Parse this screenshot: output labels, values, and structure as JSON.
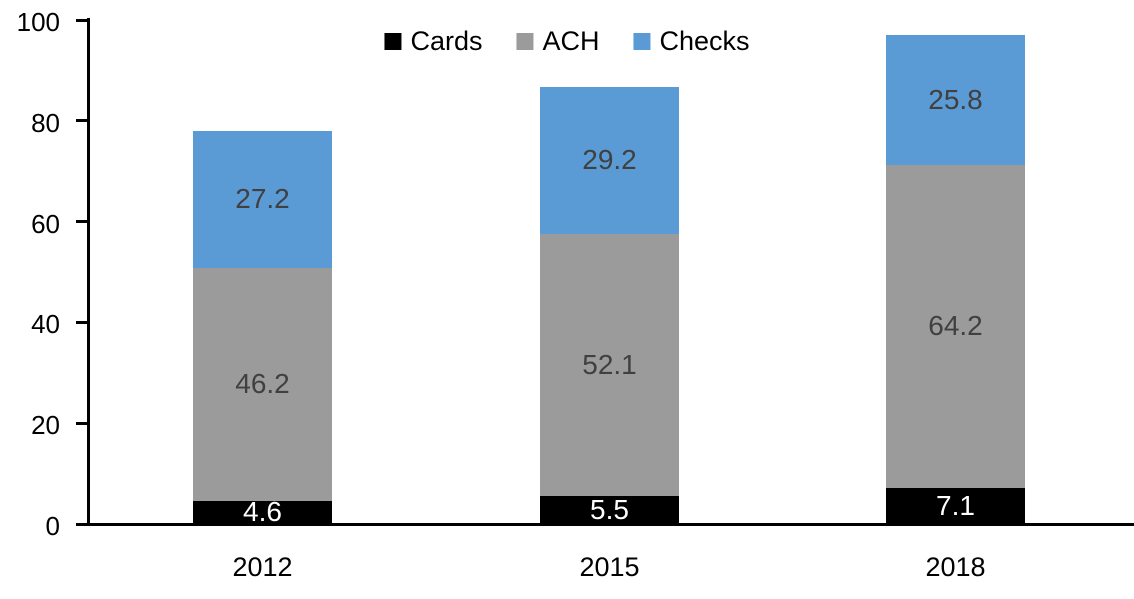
{
  "chart_data": {
    "type": "bar",
    "stacked": true,
    "title": "",
    "xlabel": "",
    "ylabel": "",
    "categories": [
      "2012",
      "2015",
      "2018"
    ],
    "series": [
      {
        "name": "Cards",
        "values": [
          4.6,
          5.5,
          7.1
        ],
        "color": "#000000",
        "label_color": "#ffffff"
      },
      {
        "name": "ACH",
        "values": [
          46.2,
          52.1,
          64.2
        ],
        "color": "#9b9b9b",
        "label_color": "#404040"
      },
      {
        "name": "Checks",
        "values": [
          27.2,
          29.2,
          25.8
        ],
        "color": "#5b9bd5",
        "label_color": "#404040"
      }
    ],
    "ylim": [
      0,
      100
    ],
    "ytick_step": 20,
    "ytick_labels": [
      "0",
      "20",
      "40",
      "60",
      "80",
      "100"
    ],
    "grid": false,
    "legend_position": "top-center",
    "data_labels_visible": true,
    "axis_color": "#000000",
    "background_color": "#ffffff"
  }
}
